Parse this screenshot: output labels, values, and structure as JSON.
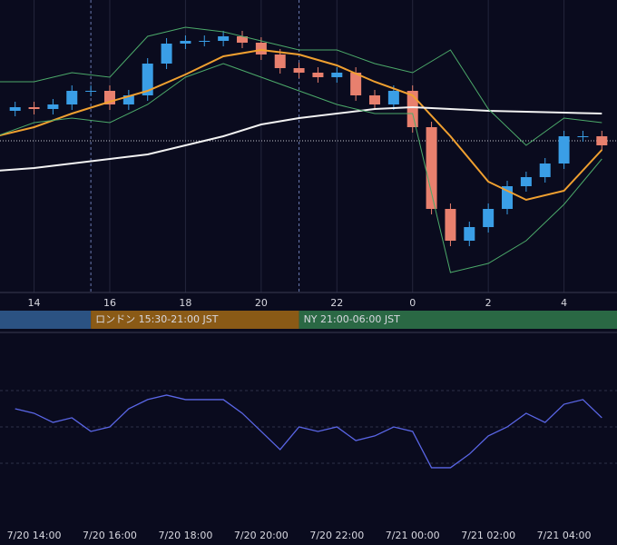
{
  "chart_data": [
    {
      "type": "candlestick",
      "x": [
        13.5,
        14,
        14.5,
        15,
        15.5,
        16,
        16.5,
        17,
        17.5,
        18,
        18.5,
        19,
        19.5,
        20,
        20.5,
        21,
        21.5,
        22,
        22.5,
        23,
        23.5,
        24,
        24.5,
        25,
        25.5,
        26,
        26.5,
        27,
        27.5,
        28,
        28.5,
        29
      ],
      "open": [
        200,
        204,
        202,
        207,
        222,
        222,
        207,
        217,
        252,
        274,
        277,
        277,
        282,
        275,
        262,
        247,
        242,
        237,
        242,
        217,
        207,
        222,
        182,
        92,
        57,
        72,
        92,
        117,
        127,
        142,
        172,
        172
      ],
      "high": [
        210,
        210,
        213,
        228,
        228,
        228,
        223,
        258,
        280,
        283,
        283,
        288,
        288,
        281,
        268,
        253,
        248,
        248,
        248,
        223,
        228,
        228,
        188,
        98,
        78,
        98,
        123,
        133,
        148,
        178,
        178,
        178
      ],
      "low": [
        194,
        196,
        196,
        201,
        216,
        201,
        201,
        211,
        246,
        268,
        271,
        271,
        269,
        256,
        241,
        236,
        231,
        231,
        211,
        201,
        201,
        176,
        86,
        51,
        51,
        66,
        86,
        111,
        121,
        136,
        166,
        156
      ],
      "close": [
        204,
        202,
        207,
        222,
        222,
        207,
        217,
        252,
        274,
        277,
        277,
        282,
        275,
        262,
        247,
        242,
        237,
        242,
        217,
        207,
        222,
        182,
        92,
        57,
        72,
        92,
        117,
        127,
        142,
        172,
        172,
        162
      ],
      "up_color": "#3a9ee6",
      "down_color": "#e8806e",
      "lines_x": [
        13,
        14,
        15,
        16,
        17,
        18,
        19,
        20,
        21,
        22,
        23,
        24,
        25,
        26,
        27,
        28,
        29
      ],
      "lines": [
        {
          "color": "#f0a030",
          "values": [
            172,
            182,
            197,
            210,
            222,
            240,
            260,
            267,
            262,
            250,
            232,
            217,
            172,
            122,
            102,
            112,
            157
          ]
        },
        {
          "color": "#f2f2f2",
          "values": [
            134,
            137,
            142,
            147,
            152,
            162,
            172,
            185,
            192,
            197,
            202,
            204,
            202,
            200,
            199,
            198,
            197
          ]
        },
        {
          "color": "#4caa6a",
          "values": [
            232,
            232,
            242,
            237,
            282,
            292,
            287,
            277,
            267,
            267,
            252,
            242,
            267,
            202,
            162,
            192,
            187
          ]
        },
        {
          "color": "#4caa6a",
          "values": [
            172,
            187,
            192,
            187,
            207,
            237,
            252,
            237,
            222,
            207,
            197,
            197,
            22,
            32,
            57,
            97,
            147
          ]
        }
      ],
      "price_line": 167,
      "xlim": [
        13.1,
        29.4
      ],
      "ylim": [
        0,
        322
      ],
      "xticks": [
        14,
        16,
        18,
        20,
        22,
        {
          "value": 24,
          "label": "0"
        },
        {
          "value": 26,
          "label": "2"
        },
        {
          "value": 28,
          "label": "4"
        }
      ],
      "sessions": [
        {
          "start": 13.1,
          "end": 15.5,
          "color": "#2b5282"
        },
        {
          "label": "ロンドン 15:30-21:00 JST",
          "start": 15.5,
          "end": 21,
          "color": "#8a5a16"
        },
        {
          "label": "NY 21:00-06:00 JST",
          "start": 21,
          "end": 29.4,
          "color": "#2a6844"
        }
      ]
    },
    {
      "type": "line",
      "x": [
        13.5,
        14,
        14.5,
        15,
        15.5,
        16,
        16.5,
        17,
        17.5,
        18,
        18.5,
        19,
        19.5,
        20,
        20.5,
        21,
        21.5,
        22,
        22.5,
        23,
        23.5,
        24,
        24.5,
        25,
        25.5,
        26,
        26.5,
        27,
        27.5,
        28,
        28.5,
        29
      ],
      "values": [
        62.5,
        59.4,
        53.1,
        56.3,
        46.9,
        50,
        62.5,
        68.8,
        71.9,
        68.8,
        68.8,
        68.8,
        59.4,
        46.9,
        34.4,
        50,
        46.9,
        50,
        40.6,
        43.8,
        50,
        46.9,
        21.9,
        21.9,
        31.3,
        43.8,
        50,
        59.4,
        53.1,
        65.6,
        68.8,
        56.3
      ],
      "color": "#5a66e6",
      "xlim": [
        13.1,
        29.4
      ],
      "ylim": [
        0,
        100
      ],
      "levels": [
        25,
        50,
        75
      ],
      "xticks": [
        {
          "value": 14,
          "label": "7/20 14:00"
        },
        {
          "value": 16,
          "label": "7/20 16:00"
        },
        {
          "value": 18,
          "label": "7/20 18:00"
        },
        {
          "value": 20,
          "label": "7/20 20:00"
        },
        {
          "value": 22,
          "label": "7/20 22:00"
        },
        {
          "value": 24,
          "label": "7/21 00:00"
        },
        {
          "value": 26,
          "label": "7/21 02:00"
        },
        {
          "value": 28,
          "label": "7/21 04:00"
        }
      ]
    }
  ]
}
